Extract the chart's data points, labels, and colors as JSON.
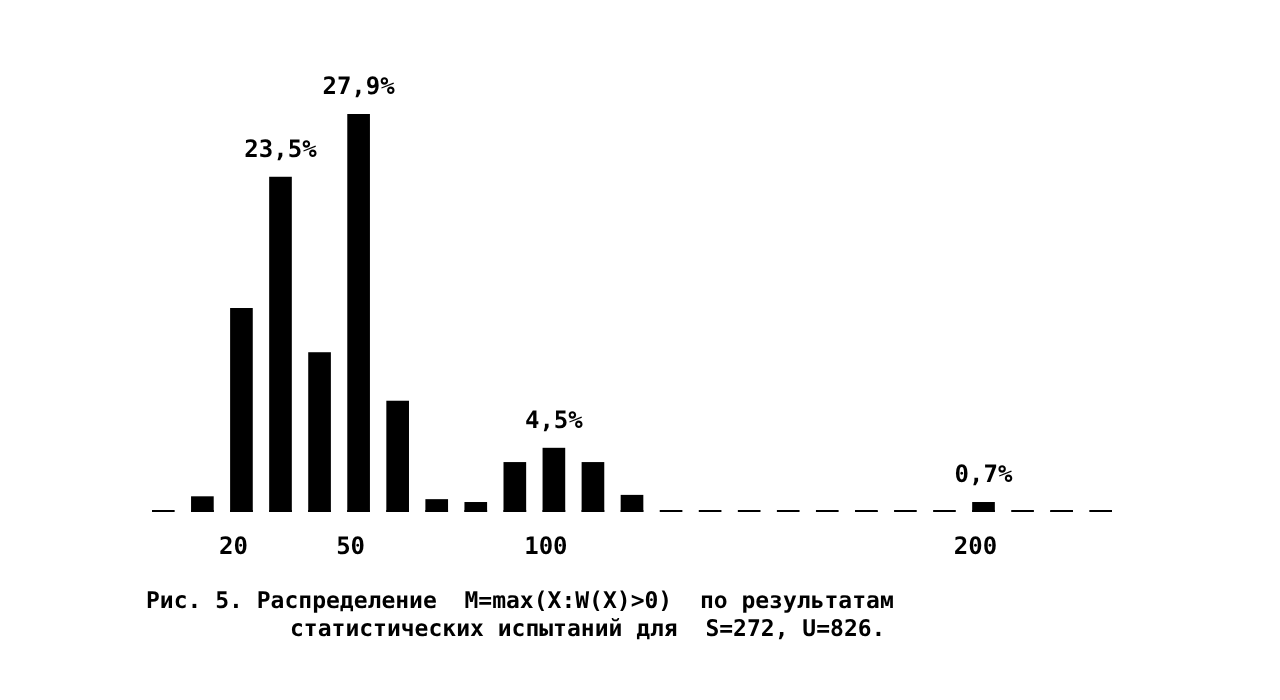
{
  "chart_data": {
    "type": "bar",
    "title": "Рис. 5. Распределение  M=max(X:W(X)>0)  по результатам\nстатистических испытаний для  S=272, U=826.",
    "categories": [
      null,
      null,
      "20",
      null,
      null,
      "50",
      null,
      null,
      null,
      null,
      "100",
      null,
      null,
      null,
      null,
      null,
      null,
      null,
      null,
      null,
      null,
      "200",
      null,
      null,
      null
    ],
    "values": [
      0,
      1.1,
      14.3,
      23.5,
      11.2,
      27.9,
      7.8,
      0.9,
      0.7,
      3.5,
      4.5,
      3.5,
      1.2,
      0,
      0,
      0,
      0,
      0,
      0.1,
      0,
      0,
      0.7,
      0,
      0.1,
      0
    ],
    "value_labels": [
      null,
      null,
      null,
      "23,5%",
      null,
      "27,9%",
      null,
      null,
      null,
      null,
      "4,5%",
      null,
      null,
      null,
      null,
      null,
      null,
      null,
      null,
      null,
      null,
      "0,7%",
      null,
      null,
      null
    ],
    "color": "#000000"
  }
}
